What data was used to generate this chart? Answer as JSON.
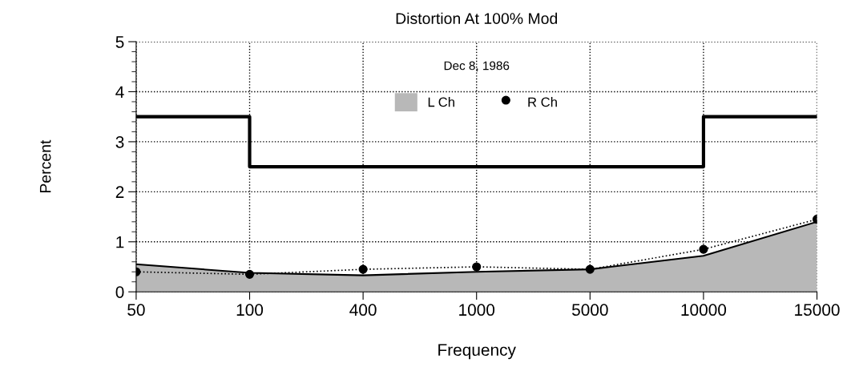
{
  "chart_data": {
    "type": "area",
    "title": "Distortion At 100% Mod",
    "xlabel": "Frequency",
    "ylabel": "Percent",
    "categories": [
      "50",
      "100",
      "400",
      "1000",
      "5000",
      "10000",
      "15000"
    ],
    "series": [
      {
        "name": "L Ch",
        "color": "#b8b8b8",
        "values": [
          0.55,
          0.38,
          0.33,
          0.4,
          0.45,
          0.72,
          1.4
        ]
      },
      {
        "name": "R Ch",
        "type": "line",
        "color": "#000000",
        "marker": "circle",
        "line_style": "dotted",
        "values": [
          0.4,
          0.35,
          0.45,
          0.5,
          0.45,
          0.85,
          1.45
        ]
      },
      {
        "type": "step",
        "color": "#000000",
        "values": [
          3.5,
          2.5,
          2.5,
          2.5,
          2.5,
          3.5,
          3.5
        ]
      }
    ],
    "ylim": [
      0,
      5
    ],
    "yticks": [
      0,
      1,
      2,
      3,
      4,
      5
    ],
    "grid": true,
    "legend": "top",
    "annotations": [
      "Dec 8, 1986"
    ]
  }
}
